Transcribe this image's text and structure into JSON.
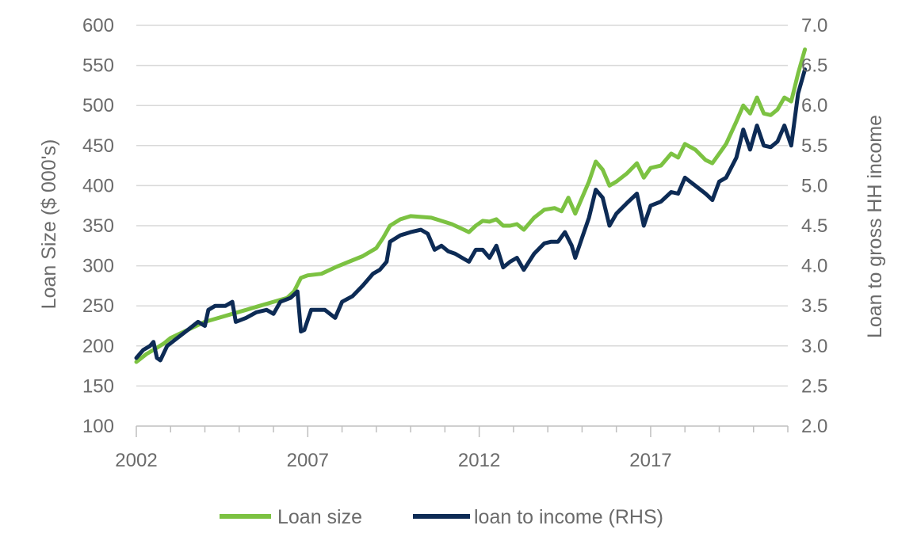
{
  "chart_data": {
    "type": "line",
    "title": "",
    "xlabel": "",
    "ylabel": "Loan Size ($ 000's)",
    "y2label": "Loan to gross HH income",
    "xlim": [
      2002.0,
      2021.0
    ],
    "ylim": [
      100,
      600
    ],
    "y2lim": [
      2.0,
      7.0
    ],
    "x_ticks": [
      2002,
      2007,
      2012,
      2017
    ],
    "y_ticks": [
      100,
      150,
      200,
      250,
      300,
      350,
      400,
      450,
      500,
      550,
      600
    ],
    "y2_ticks": [
      "2.0",
      "2.5",
      "3.0",
      "3.5",
      "4.0",
      "4.5",
      "5.0",
      "5.5",
      "6.0",
      "6.5",
      "7.0"
    ],
    "grid": true,
    "legend_position": "bottom",
    "series": [
      {
        "name": "Loan size",
        "axis": "left",
        "color": "#7cc242",
        "points": [
          [
            2002.0,
            180
          ],
          [
            2002.3,
            190
          ],
          [
            2002.5,
            195
          ],
          [
            2002.8,
            203
          ],
          [
            2003.0,
            210
          ],
          [
            2003.3,
            216
          ],
          [
            2003.6,
            222
          ],
          [
            2004.0,
            230
          ],
          [
            2004.4,
            235
          ],
          [
            2004.8,
            240
          ],
          [
            2005.2,
            245
          ],
          [
            2005.6,
            250
          ],
          [
            2006.0,
            255
          ],
          [
            2006.4,
            260
          ],
          [
            2006.6,
            268
          ],
          [
            2006.8,
            285
          ],
          [
            2007.0,
            288
          ],
          [
            2007.4,
            290
          ],
          [
            2007.8,
            298
          ],
          [
            2008.2,
            305
          ],
          [
            2008.6,
            312
          ],
          [
            2009.0,
            322
          ],
          [
            2009.2,
            335
          ],
          [
            2009.4,
            350
          ],
          [
            2009.7,
            358
          ],
          [
            2010.0,
            362
          ],
          [
            2010.3,
            361
          ],
          [
            2010.6,
            360
          ],
          [
            2010.9,
            356
          ],
          [
            2011.2,
            352
          ],
          [
            2011.5,
            346
          ],
          [
            2011.7,
            342
          ],
          [
            2011.9,
            350
          ],
          [
            2012.1,
            356
          ],
          [
            2012.3,
            355
          ],
          [
            2012.5,
            358
          ],
          [
            2012.7,
            350
          ],
          [
            2012.9,
            350
          ],
          [
            2013.1,
            352
          ],
          [
            2013.3,
            345
          ],
          [
            2013.6,
            360
          ],
          [
            2013.9,
            370
          ],
          [
            2014.2,
            372
          ],
          [
            2014.4,
            368
          ],
          [
            2014.6,
            385
          ],
          [
            2014.8,
            365
          ],
          [
            2015.0,
            385
          ],
          [
            2015.2,
            405
          ],
          [
            2015.4,
            430
          ],
          [
            2015.6,
            420
          ],
          [
            2015.8,
            400
          ],
          [
            2016.0,
            405
          ],
          [
            2016.3,
            415
          ],
          [
            2016.6,
            428
          ],
          [
            2016.8,
            410
          ],
          [
            2017.0,
            422
          ],
          [
            2017.3,
            425
          ],
          [
            2017.6,
            440
          ],
          [
            2017.8,
            435
          ],
          [
            2018.0,
            452
          ],
          [
            2018.3,
            445
          ],
          [
            2018.6,
            432
          ],
          [
            2018.8,
            428
          ],
          [
            2019.0,
            440
          ],
          [
            2019.2,
            452
          ],
          [
            2019.5,
            480
          ],
          [
            2019.7,
            500
          ],
          [
            2019.9,
            490
          ],
          [
            2020.1,
            510
          ],
          [
            2020.3,
            490
          ],
          [
            2020.5,
            488
          ],
          [
            2020.7,
            495
          ],
          [
            2020.9,
            510
          ],
          [
            2021.1,
            505
          ],
          [
            2021.3,
            540
          ],
          [
            2021.5,
            570
          ]
        ]
      },
      {
        "name": "loan to income (RHS)",
        "axis": "right",
        "color": "#0d2b55",
        "points": [
          [
            2002.0,
            2.85
          ],
          [
            2002.2,
            2.95
          ],
          [
            2002.4,
            3.0
          ],
          [
            2002.5,
            3.05
          ],
          [
            2002.6,
            2.85
          ],
          [
            2002.7,
            2.82
          ],
          [
            2002.9,
            3.0
          ],
          [
            2003.2,
            3.1
          ],
          [
            2003.5,
            3.2
          ],
          [
            2003.8,
            3.3
          ],
          [
            2004.0,
            3.25
          ],
          [
            2004.1,
            3.45
          ],
          [
            2004.3,
            3.5
          ],
          [
            2004.6,
            3.5
          ],
          [
            2004.8,
            3.55
          ],
          [
            2004.9,
            3.3
          ],
          [
            2005.2,
            3.35
          ],
          [
            2005.5,
            3.42
          ],
          [
            2005.8,
            3.45
          ],
          [
            2006.0,
            3.4
          ],
          [
            2006.2,
            3.55
          ],
          [
            2006.5,
            3.6
          ],
          [
            2006.7,
            3.68
          ],
          [
            2006.8,
            3.18
          ],
          [
            2006.9,
            3.2
          ],
          [
            2007.1,
            3.45
          ],
          [
            2007.5,
            3.45
          ],
          [
            2007.8,
            3.35
          ],
          [
            2008.0,
            3.55
          ],
          [
            2008.3,
            3.62
          ],
          [
            2008.6,
            3.75
          ],
          [
            2008.9,
            3.9
          ],
          [
            2009.1,
            3.95
          ],
          [
            2009.3,
            4.05
          ],
          [
            2009.4,
            4.3
          ],
          [
            2009.7,
            4.38
          ],
          [
            2010.0,
            4.42
          ],
          [
            2010.3,
            4.45
          ],
          [
            2010.5,
            4.4
          ],
          [
            2010.7,
            4.2
          ],
          [
            2010.9,
            4.25
          ],
          [
            2011.1,
            4.18
          ],
          [
            2011.3,
            4.15
          ],
          [
            2011.5,
            4.1
          ],
          [
            2011.7,
            4.05
          ],
          [
            2011.9,
            4.2
          ],
          [
            2012.1,
            4.2
          ],
          [
            2012.3,
            4.1
          ],
          [
            2012.5,
            4.25
          ],
          [
            2012.7,
            3.98
          ],
          [
            2012.9,
            4.05
          ],
          [
            2013.1,
            4.1
          ],
          [
            2013.3,
            3.95
          ],
          [
            2013.6,
            4.15
          ],
          [
            2013.9,
            4.28
          ],
          [
            2014.1,
            4.3
          ],
          [
            2014.3,
            4.3
          ],
          [
            2014.5,
            4.42
          ],
          [
            2014.7,
            4.25
          ],
          [
            2014.8,
            4.1
          ],
          [
            2015.0,
            4.35
          ],
          [
            2015.2,
            4.6
          ],
          [
            2015.4,
            4.95
          ],
          [
            2015.6,
            4.85
          ],
          [
            2015.8,
            4.5
          ],
          [
            2016.0,
            4.65
          ],
          [
            2016.3,
            4.78
          ],
          [
            2016.6,
            4.9
          ],
          [
            2016.8,
            4.5
          ],
          [
            2017.0,
            4.75
          ],
          [
            2017.3,
            4.8
          ],
          [
            2017.6,
            4.92
          ],
          [
            2017.8,
            4.9
          ],
          [
            2018.0,
            5.1
          ],
          [
            2018.3,
            5.0
          ],
          [
            2018.6,
            4.9
          ],
          [
            2018.8,
            4.82
          ],
          [
            2019.0,
            5.05
          ],
          [
            2019.2,
            5.1
          ],
          [
            2019.5,
            5.35
          ],
          [
            2019.7,
            5.7
          ],
          [
            2019.9,
            5.45
          ],
          [
            2020.1,
            5.75
          ],
          [
            2020.3,
            5.5
          ],
          [
            2020.5,
            5.48
          ],
          [
            2020.7,
            5.55
          ],
          [
            2020.9,
            5.75
          ],
          [
            2021.1,
            5.5
          ],
          [
            2021.3,
            6.15
          ],
          [
            2021.5,
            6.45
          ]
        ]
      }
    ]
  },
  "legend": {
    "items": [
      {
        "label": "Loan size",
        "color": "#7cc242"
      },
      {
        "label": "loan to income (RHS)",
        "color": "#0d2b55"
      }
    ]
  }
}
